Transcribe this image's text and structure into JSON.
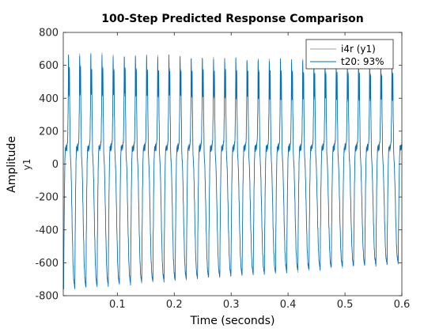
{
  "chart_data": {
    "type": "line",
    "title": "100-Step Predicted Response Comparison",
    "xlabel": "Time (seconds)",
    "ylabel": "Amplitude",
    "ylabel_sub": "y1",
    "xlim": [
      0.005,
      0.6
    ],
    "ylim": [
      -800,
      800
    ],
    "xticks": [
      0.1,
      0.2,
      0.3,
      0.4,
      0.5,
      0.6
    ],
    "xtick_labels": [
      "0.1",
      "0.2",
      "0.3",
      "0.4",
      "0.5",
      "0.6"
    ],
    "yticks": [
      -800,
      -600,
      -400,
      -200,
      0,
      200,
      400,
      600,
      800
    ],
    "ytick_labels": [
      "-800",
      "-600",
      "-400",
      "-200",
      "0",
      "200",
      "400",
      "600",
      "800"
    ],
    "grid": false,
    "box": true,
    "legend_position": "top-right",
    "legend": [
      "i4r (y1)",
      "t20:  93%"
    ],
    "colors": {
      "measured": "#a0a0a0",
      "predicted": "#0072bd",
      "axes": "#262626"
    },
    "signal": {
      "period_seconds": 0.0196,
      "t_start": 0.005,
      "t_end": 0.6,
      "peak_start": 670,
      "peak_end": 620,
      "trough_start": -760,
      "trough_end": -600,
      "shoulder_level": 110
    }
  }
}
